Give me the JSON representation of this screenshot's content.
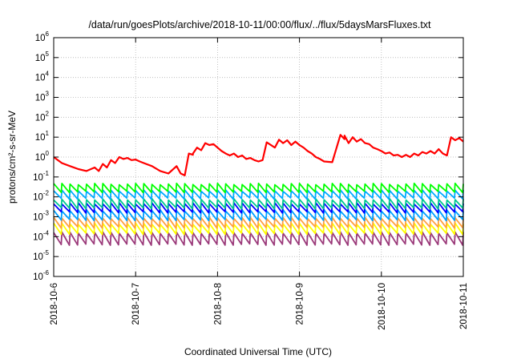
{
  "chart_data": {
    "type": "line",
    "title": "/data/run/goesPlots/archive/2018-10-11/00:00/flux/../flux/5daysMarsFluxes.txt",
    "xlabel": "Coordinated Universal Time (UTC)",
    "ylabel": "protons/cm²-s-sr-MeV",
    "yscale": "log",
    "ylim": [
      1e-06,
      1000000.0
    ],
    "xlim": [
      "2018-10-06",
      "2018-10-11 00:00"
    ],
    "grid": true,
    "x_ticks": [
      "2018-10-6",
      "2018-10-7",
      "2018-10-8",
      "2018-10-9",
      "2018-10-10",
      "2018-10-11"
    ],
    "y_ticks": [
      {
        "base": "10",
        "exp": "-6"
      },
      {
        "base": "10",
        "exp": "-5"
      },
      {
        "base": "10",
        "exp": "-4"
      },
      {
        "base": "10",
        "exp": "-3"
      },
      {
        "base": "10",
        "exp": "-2"
      },
      {
        "base": "10",
        "exp": "-1"
      },
      {
        "base": "10",
        "exp": "0"
      },
      {
        "base": "10",
        "exp": "1"
      },
      {
        "base": "10",
        "exp": "2"
      },
      {
        "base": "10",
        "exp": "3"
      },
      {
        "base": "10",
        "exp": "4"
      },
      {
        "base": "10",
        "exp": "5"
      },
      {
        "base": "10",
        "exp": "6"
      }
    ],
    "series": [
      {
        "color": "#ff0000",
        "x_days": [
          0.0,
          0.1,
          0.2,
          0.3,
          0.4,
          0.5,
          0.55,
          0.6,
          0.65,
          0.7,
          0.75,
          0.8,
          0.85,
          0.9,
          0.95,
          1.0,
          1.05,
          1.1,
          1.2,
          1.3,
          1.4,
          1.5,
          1.55,
          1.6,
          1.65,
          1.7,
          1.7,
          1.75,
          1.8,
          1.85,
          1.9,
          1.95,
          2.0,
          2.05,
          2.1,
          2.15,
          2.2,
          2.25,
          2.3,
          2.35,
          2.4,
          2.45,
          2.5,
          2.55,
          2.6,
          2.7,
          2.75,
          2.8,
          2.85,
          2.9,
          2.95,
          3.0,
          3.05,
          3.1,
          3.15,
          3.2,
          3.25,
          3.3,
          3.4,
          3.5,
          3.55,
          3.55,
          3.6,
          3.65,
          3.7,
          3.75,
          3.8,
          3.85,
          3.9,
          3.95,
          4.0,
          4.05,
          4.1,
          4.15,
          4.2,
          4.25,
          4.3,
          4.35,
          4.4,
          4.45,
          4.5,
          4.55,
          4.6,
          4.65,
          4.7,
          4.75,
          4.8,
          4.85,
          4.9,
          4.95,
          5.0
        ],
        "y": [
          1.0,
          0.5,
          0.35,
          0.25,
          0.2,
          0.3,
          0.2,
          0.45,
          0.3,
          0.7,
          0.5,
          1.0,
          0.8,
          0.9,
          0.7,
          0.75,
          0.6,
          0.5,
          0.35,
          0.2,
          0.15,
          0.35,
          0.15,
          0.12,
          1.5,
          1.3,
          1.5,
          3.0,
          2.2,
          5.0,
          4.0,
          4.5,
          3.0,
          2.0,
          1.5,
          1.2,
          1.5,
          1.0,
          1.2,
          0.8,
          0.9,
          0.7,
          0.6,
          0.7,
          5.5,
          3.0,
          7.5,
          5.0,
          7.0,
          4.0,
          6.0,
          4.0,
          3.0,
          2.0,
          1.5,
          1.0,
          0.8,
          0.6,
          0.55,
          13.0,
          8.0,
          12.0,
          5.0,
          10.0,
          6.0,
          8.0,
          5.0,
          4.5,
          3.0,
          2.5,
          2.0,
          1.5,
          1.7,
          1.2,
          1.3,
          1.0,
          1.3,
          1.0,
          1.5,
          1.2,
          1.8,
          1.5,
          2.0,
          1.5,
          2.5,
          1.5,
          1.2,
          10.0,
          7.0,
          9.0,
          6.0
        ]
      },
      {
        "color": "#00ff00",
        "center": 0.028,
        "ratio": 2.5
      },
      {
        "color": "#00aaff",
        "center": 0.013,
        "ratio": 2.5
      },
      {
        "color": "#00c890",
        "center": 0.0045,
        "ratio": 2.8
      },
      {
        "color": "#0000ff",
        "center": 0.0028,
        "ratio": 2.8
      },
      {
        "color": "#00a0ff",
        "center": 0.0012,
        "ratio": 3.0
      },
      {
        "color": "#ffa040",
        "center": 0.0005,
        "ratio": 3.0
      },
      {
        "color": "#ffff00",
        "center": 0.00025,
        "ratio": 3.2
      },
      {
        "color": "#9b3a7a",
        "center": 8e-05,
        "ratio": 4.0
      }
    ]
  }
}
